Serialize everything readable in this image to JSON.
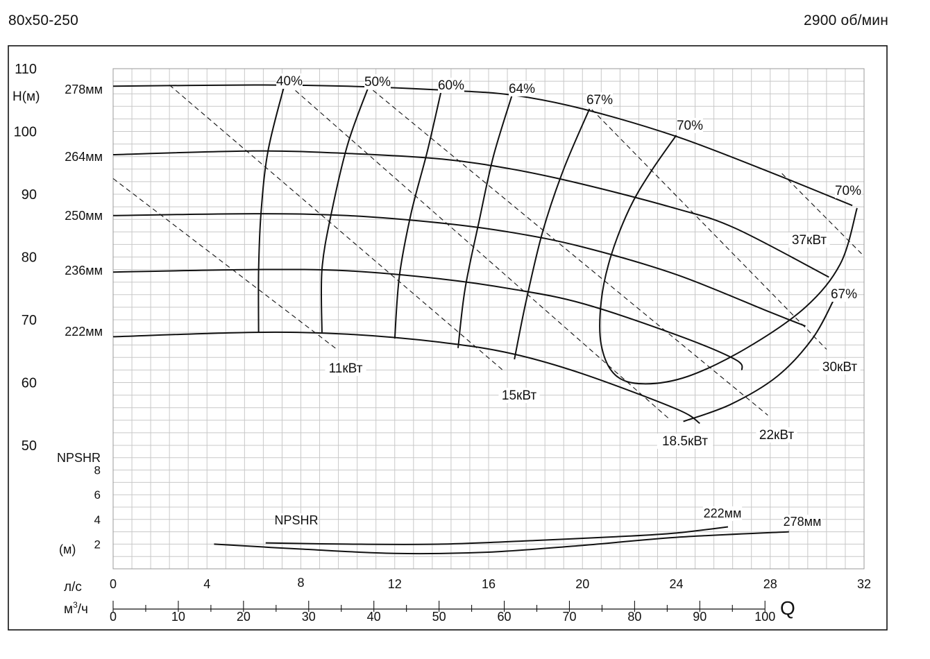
{
  "header": {
    "model": "80x50-250",
    "speed": "2900 об/мин"
  },
  "chart_data": {
    "type": "line",
    "title": "80x50-250",
    "subtitle": "2900 об/мин",
    "colors": {
      "curve": "#111111",
      "grid": "#c8c8c8",
      "frame": "#111111",
      "background": "#ffffff"
    },
    "grid": true,
    "x_axis": {
      "unit_ls": "л/с",
      "unit_m3h_prefix": "м",
      "unit_m3h_sup": "3",
      "unit_m3h_suffix": "/ч",
      "symbol": "Q",
      "range_ls": [
        0,
        32
      ],
      "ticks_ls": [
        "0",
        "4",
        "8",
        "12",
        "16",
        "20",
        "24",
        "28",
        "32"
      ],
      "range_m3h": [
        0,
        115.2
      ],
      "ticks_m3h": [
        "0",
        "10",
        "20",
        "30",
        "40",
        "50",
        "60",
        "70",
        "80",
        "90",
        "100"
      ]
    },
    "head_axis": {
      "ylabel": "H(м)",
      "range": [
        50,
        110
      ],
      "ticks": [
        "50",
        "60",
        "70",
        "80",
        "90",
        "100",
        "110"
      ]
    },
    "npsh_axis": {
      "ylabel": "NPSHR",
      "unit": "(м)",
      "range": [
        0,
        10
      ],
      "ticks": [
        "2",
        "4",
        "6",
        "8"
      ]
    },
    "head_curves": [
      {
        "name": "278мм",
        "points": [
          [
            0,
            107.2
          ],
          [
            6,
            107.4
          ],
          [
            10,
            107.2
          ],
          [
            14,
            106.6
          ],
          [
            17,
            105.8
          ],
          [
            20,
            103.6
          ],
          [
            24,
            99.2
          ],
          [
            28,
            93.5
          ],
          [
            31.5,
            88.2
          ]
        ]
      },
      {
        "name": "264мм",
        "points": [
          [
            0,
            96.3
          ],
          [
            6,
            96.9
          ],
          [
            10,
            96.5
          ],
          [
            14,
            95.6
          ],
          [
            17,
            94.0
          ],
          [
            20,
            91.6
          ],
          [
            24,
            87.7
          ],
          [
            26.5,
            84.6
          ],
          [
            30.5,
            76.8
          ]
        ]
      },
      {
        "name": "250мм",
        "points": [
          [
            0,
            86.6
          ],
          [
            6,
            86.9
          ],
          [
            10,
            86.6
          ],
          [
            14,
            85.4
          ],
          [
            17,
            83.9
          ],
          [
            20,
            81.6
          ],
          [
            24,
            77.2
          ],
          [
            28,
            71.2
          ],
          [
            29.5,
            69.0
          ]
        ]
      },
      {
        "name": "236мм",
        "points": [
          [
            0,
            77.6
          ],
          [
            6,
            78.0
          ],
          [
            10,
            77.8
          ],
          [
            14,
            76.5
          ],
          [
            17,
            74.9
          ],
          [
            20,
            72.6
          ],
          [
            24,
            67.6
          ],
          [
            26.5,
            63.7
          ],
          [
            26.8,
            62.0
          ]
        ]
      },
      {
        "name": "222мм",
        "points": [
          [
            0,
            67.3
          ],
          [
            6,
            68.0
          ],
          [
            10,
            67.7
          ],
          [
            14,
            66.4
          ],
          [
            17,
            64.6
          ],
          [
            20,
            61.4
          ],
          [
            24,
            55.8
          ],
          [
            25,
            53.5
          ]
        ]
      }
    ],
    "efficiency_curves": [
      {
        "name": "40%",
        "points": [
          [
            7.3,
            107.4
          ],
          [
            6.6,
            96.9
          ],
          [
            6.3,
            86.9
          ],
          [
            6.2,
            77.8
          ],
          [
            6.2,
            67.9
          ]
        ]
      },
      {
        "name": "50%",
        "points": [
          [
            10.9,
            107.3
          ],
          [
            10.0,
            98.0
          ],
          [
            9.3,
            87.0
          ],
          [
            8.9,
            78.0
          ],
          [
            8.9,
            68.0
          ]
        ]
      },
      {
        "name": "60%",
        "points": [
          [
            14.0,
            106.8
          ],
          [
            13.4,
            97.0
          ],
          [
            12.7,
            87.0
          ],
          [
            12.2,
            77.0
          ],
          [
            12.0,
            67.0
          ]
        ]
      },
      {
        "name": "64%",
        "points": [
          [
            17.0,
            105.8
          ],
          [
            16.2,
            96.0
          ],
          [
            15.6,
            85.8
          ],
          [
            15.0,
            75.0
          ],
          [
            14.7,
            65.5
          ]
        ]
      },
      {
        "name": "67%",
        "points": [
          [
            20.3,
            103.6
          ],
          [
            19.2,
            94.0
          ],
          [
            18.3,
            84.0
          ],
          [
            17.6,
            73.0
          ],
          [
            17.1,
            63.7
          ]
        ]
      },
      {
        "name": "70%",
        "points": [
          [
            24.0,
            99.4
          ],
          [
            22.9,
            93.5
          ],
          [
            22.0,
            87.7
          ],
          [
            21.2,
            80.0
          ],
          [
            20.8,
            73.0
          ],
          [
            20.8,
            66.0
          ],
          [
            21.4,
            61.2
          ],
          [
            22.6,
            59.8
          ],
          [
            24.5,
            61.0
          ],
          [
            27.0,
            65.5
          ],
          [
            29.5,
            72.0
          ],
          [
            31.0,
            79.0
          ],
          [
            31.7,
            87.8
          ]
        ]
      },
      {
        "name": "67%",
        "points": [
          [
            30.7,
            73.1
          ],
          [
            29.8,
            67.0
          ],
          [
            28.3,
            61.0
          ],
          [
            26.3,
            56.5
          ],
          [
            24.3,
            53.8
          ]
        ]
      }
    ],
    "efficiency_labels": [
      "40%",
      "50%",
      "60%",
      "64%",
      "67%",
      "70%",
      "70%",
      "67%"
    ],
    "power_lines": [
      {
        "name": "11кВт",
        "points": [
          [
            0,
            92.5
          ],
          [
            9.5,
            65.4
          ]
        ]
      },
      {
        "name": "15кВт",
        "points": [
          [
            2.4,
            107.4
          ],
          [
            16.6,
            62.0
          ]
        ]
      },
      {
        "name": "18.5кВт",
        "points": [
          [
            7.5,
            107.4
          ],
          [
            23.7,
            54.2
          ]
        ]
      },
      {
        "name": "22кВт",
        "points": [
          [
            10.8,
            107.4
          ],
          [
            27.9,
            54.8
          ]
        ]
      },
      {
        "name": "30кВт",
        "points": [
          [
            20.4,
            103.5
          ],
          [
            30.4,
            65.3
          ]
        ]
      },
      {
        "name": "37кВт",
        "points": [
          [
            28.5,
            93.3
          ],
          [
            31.9,
            80.5
          ]
        ]
      }
    ],
    "impeller_labels": [
      "278мм",
      "264мм",
      "250мм",
      "236мм",
      "222мм"
    ],
    "npshr_curves": [
      {
        "name": "222мм",
        "points": [
          [
            6.5,
            2.1
          ],
          [
            10,
            2.0
          ],
          [
            14,
            2.0
          ],
          [
            18,
            2.3
          ],
          [
            22,
            2.65
          ],
          [
            24,
            2.9
          ],
          [
            26.2,
            3.4
          ]
        ]
      },
      {
        "name": "278мм",
        "points": [
          [
            4.3,
            2.0
          ],
          [
            8,
            1.6
          ],
          [
            12,
            1.25
          ],
          [
            16,
            1.35
          ],
          [
            20,
            1.9
          ],
          [
            24,
            2.55
          ],
          [
            28.8,
            3.0
          ]
        ]
      }
    ],
    "npshr_label": "NPSHR"
  }
}
